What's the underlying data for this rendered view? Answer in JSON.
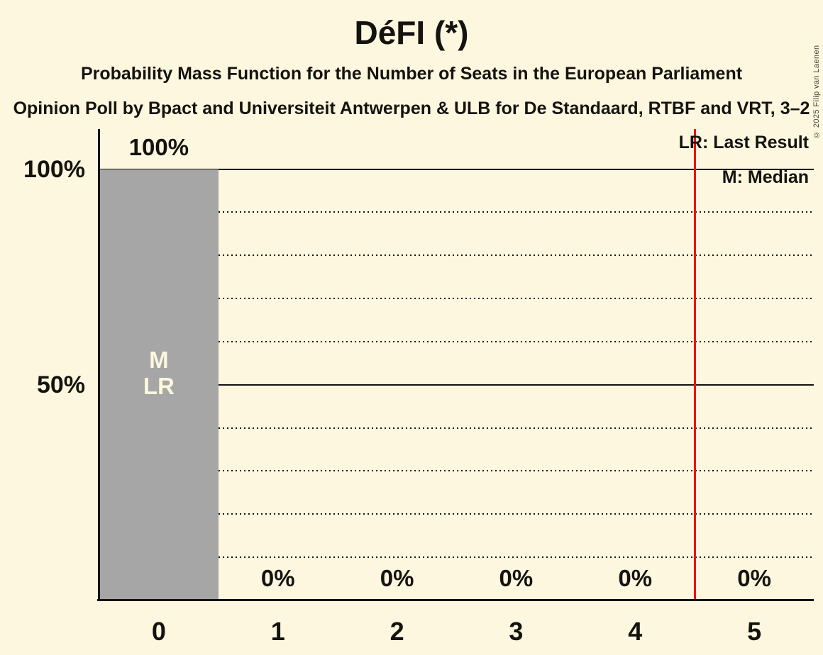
{
  "header": {
    "title": "DéFI (*)",
    "subtitle": "Probability Mass Function for the Number of Seats in the European Parliament",
    "poll_details": "Opinion Poll by Bpact and Universiteit Antwerpen & ULB for De Standaard, RTBF and VRT, 3–2"
  },
  "legend": {
    "last_result_label": "LR: Last Result",
    "median_label": "M: Median"
  },
  "copyright_notice": "© 2025 Filip van Laenen",
  "colors": {
    "background": "#FCF7DE",
    "text": "#14130F",
    "bar": "#A6A6A6",
    "marker_line": "#F01010",
    "annotation_text": "#FCF7DE"
  },
  "chart_data": {
    "type": "bar",
    "title": "DéFI (*)",
    "xlabel": "",
    "ylabel": "",
    "categories": [
      "0",
      "1",
      "2",
      "3",
      "4",
      "5"
    ],
    "values": [
      100,
      0,
      0,
      0,
      0,
      0
    ],
    "value_labels": [
      "100%",
      "0%",
      "0%",
      "0%",
      "0%",
      "0%"
    ],
    "ylim": [
      0,
      100
    ],
    "yticks": [
      {
        "value": 100,
        "label": "100%"
      },
      {
        "value": 50,
        "label": "50%"
      }
    ],
    "solid_gridlines": [
      100,
      50
    ],
    "dotted_gridlines": [
      90,
      80,
      70,
      60,
      40,
      30,
      20,
      10
    ],
    "grid": "on",
    "legend_position": "top-right",
    "median_seats": "0",
    "last_result_seats": "0",
    "bar_annotations": [
      {
        "category_index": 0,
        "lines": "M\nLR"
      }
    ],
    "marker_line": {
      "x": 4.5
    }
  }
}
